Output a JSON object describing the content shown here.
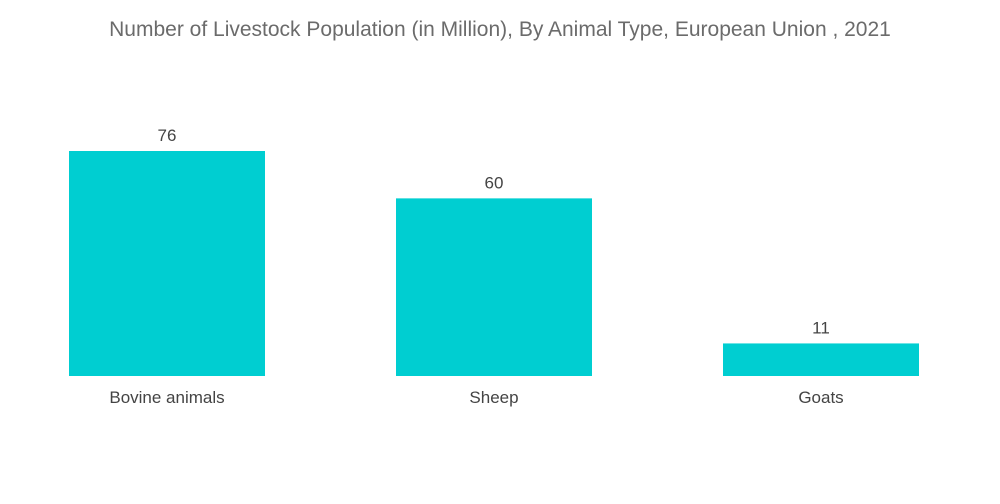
{
  "chart_data": {
    "type": "bar",
    "title": "Number of Livestock Population (in Million), By Animal Type, European Union , 2021",
    "categories": [
      "Bovine animals",
      "Sheep",
      "Goats"
    ],
    "values": [
      76,
      60,
      11
    ],
    "xlabel": "",
    "ylabel": "",
    "ylim": [
      0,
      76
    ],
    "grid": false,
    "legend": "none",
    "bar_color": "#00CED1"
  }
}
